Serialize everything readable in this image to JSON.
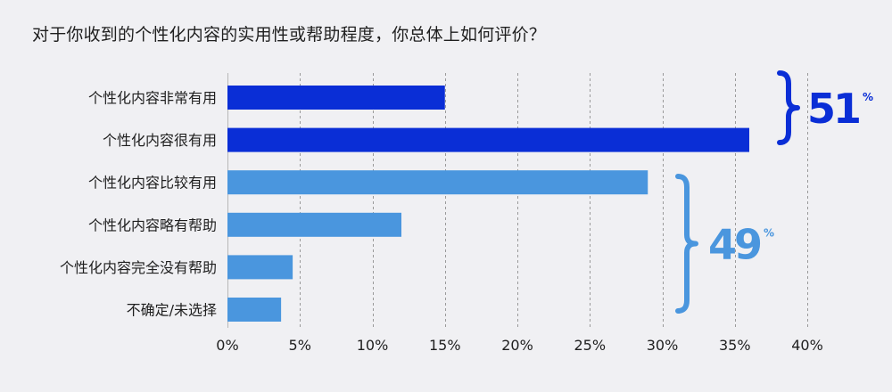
{
  "chart_data": {
    "type": "bar",
    "orientation": "horizontal",
    "title": "对于你收到的个性化内容的实用性或帮助程度，你总体上如何评价？",
    "categories": [
      "个性化内容非常有用",
      "个性化内容很有用",
      "个性化内容比较有用",
      "个性化内容略有帮助",
      "个性化内容完全没有帮助",
      "不确定/未选择"
    ],
    "values": [
      15,
      36,
      29,
      12,
      4.5,
      3.7
    ],
    "bar_colors": [
      "#0a2ed6",
      "#0a2ed6",
      "#4a96de",
      "#4a96de",
      "#4a96de",
      "#4a96de"
    ],
    "xlim": [
      0,
      40
    ],
    "xticks": [
      "0%",
      "5%",
      "10%",
      "15%",
      "20%",
      "25%",
      "30%",
      "35%",
      "40%"
    ],
    "grid": true,
    "groups": [
      {
        "value": "51",
        "unit": "%",
        "color": "#0a2ed6",
        "from": 0,
        "to": 1
      },
      {
        "value": "49",
        "unit": "%",
        "color": "#4a96de",
        "from": 2,
        "to": 5
      }
    ]
  }
}
